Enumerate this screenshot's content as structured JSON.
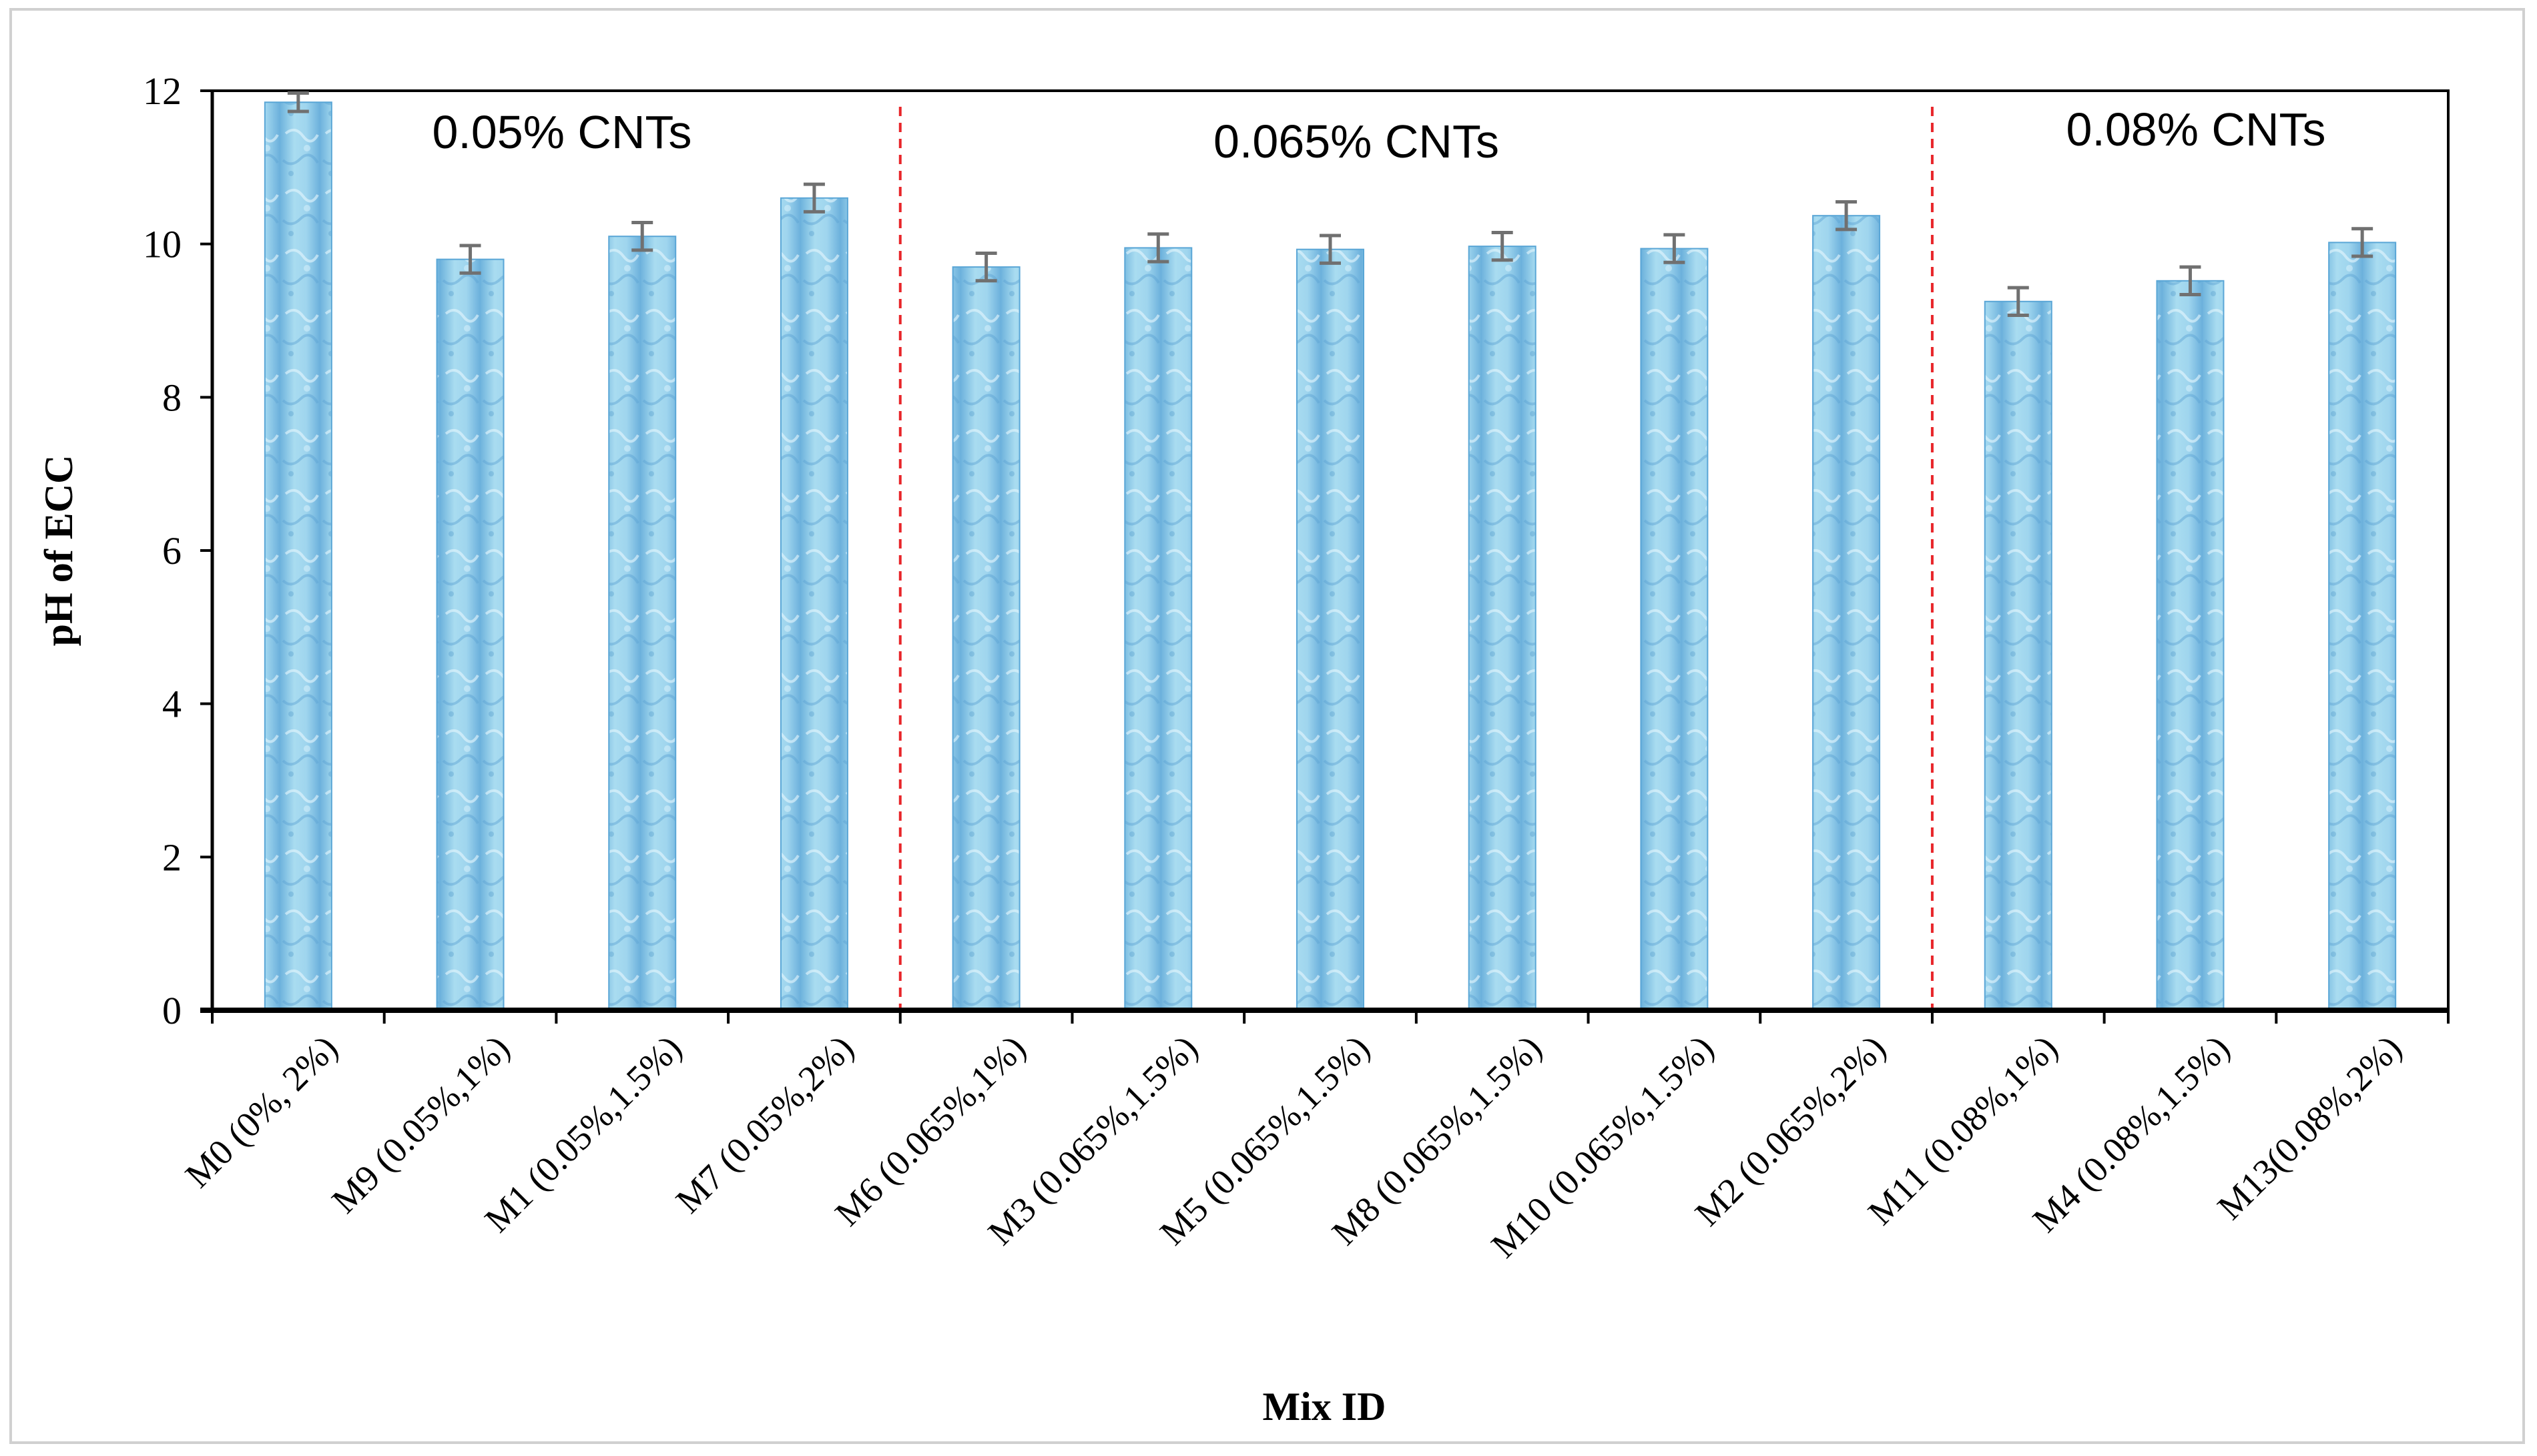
{
  "chart_data": {
    "type": "bar",
    "title": "",
    "xlabel": "Mix ID",
    "ylabel": "pH of ECC",
    "ylim": [
      0,
      12
    ],
    "yticks": [
      0,
      2,
      4,
      6,
      8,
      10,
      12
    ],
    "grid": false,
    "categories": [
      "M0 (0%, 2%)",
      "M9 (0.05%,1%)",
      "M1 (0.05%,1.5%)",
      "M7 (0.05%,2%)",
      "M6 (0.065%,1%)",
      "M3 (0.065%,1.5%)",
      "M5 (0.065%,1.5%)",
      "M8 (0.065%,1.5%)",
      "M10 (0.065%,1.5%)",
      "M2 (0.065%,2%)",
      "M11 (0.08%,1%)",
      "M4 (0.08%,1.5%)",
      "M13(0.08%,2%)"
    ],
    "values": [
      11.85,
      9.8,
      10.1,
      10.6,
      9.7,
      9.95,
      9.93,
      9.97,
      9.94,
      10.37,
      9.25,
      9.52,
      10.02
    ],
    "error": [
      0.12,
      0.18,
      0.18,
      0.18,
      0.18,
      0.18,
      0.18,
      0.18,
      0.18,
      0.18,
      0.18,
      0.18,
      0.18
    ],
    "bar_color": "#8ec9e6",
    "bar_edge_color": "#5aa6d6",
    "error_bar_color": "#707070",
    "divider_color": "#e8262a",
    "dividers_after_index": [
      3,
      9
    ],
    "groups": [
      {
        "label": "0.05% CNTs"
      },
      {
        "label": "0.065% CNTs"
      },
      {
        "label": "0.08% CNTs"
      }
    ]
  }
}
